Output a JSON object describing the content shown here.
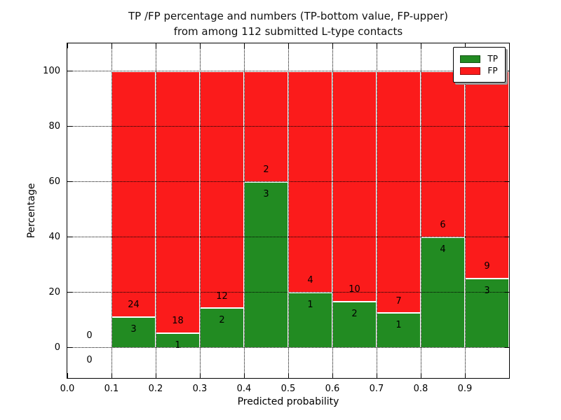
{
  "title": {
    "line1": "TP /FP percentage and numbers (TP-bottom value, FP-upper)",
    "line2": "from among 112 submitted L-type contacts"
  },
  "chart_data": {
    "type": "bar",
    "subtype": "stacked-percentage-histogram",
    "title": "TP /FP percentage and numbers (TP-bottom value, FP-upper) from among 112 submitted L-type contacts",
    "xlabel": "Predicted probability",
    "ylabel": "Percentage",
    "xlim": [
      0.0,
      1.0
    ],
    "ylim": [
      -11,
      110
    ],
    "grid": true,
    "bin_edges": [
      0.0,
      0.1,
      0.2,
      0.3,
      0.4,
      0.5,
      0.6,
      0.7,
      0.8,
      0.9,
      1.0
    ],
    "xticks": [
      "0.0",
      "0.1",
      "0.2",
      "0.3",
      "0.4",
      "0.5",
      "0.6",
      "0.7",
      "0.8",
      "0.9"
    ],
    "yticks": [
      "0",
      "20",
      "40",
      "60",
      "80",
      "100"
    ],
    "series": [
      {
        "name": "TP",
        "color": "#228b22",
        "counts": [
          0,
          3,
          1,
          2,
          3,
          1,
          2,
          1,
          4,
          3
        ]
      },
      {
        "name": "FP",
        "color": "#fb1b1b",
        "counts": [
          0,
          24,
          18,
          12,
          2,
          4,
          10,
          7,
          6,
          9
        ]
      }
    ],
    "tp_percent_heights": [
      0,
      11.1,
      5.3,
      14.3,
      60.0,
      20.0,
      16.7,
      12.5,
      40.0,
      25.0
    ],
    "total_contacts_label": "112",
    "legend": {
      "position": "upper right",
      "entries": [
        "TP",
        "FP"
      ]
    }
  },
  "colors": {
    "tp_green": "#228b22",
    "fp_red": "#fb1b1b",
    "grid": "#000000",
    "spine": "#000000",
    "background": "#ffffff",
    "legend_shadow": "#999999"
  }
}
